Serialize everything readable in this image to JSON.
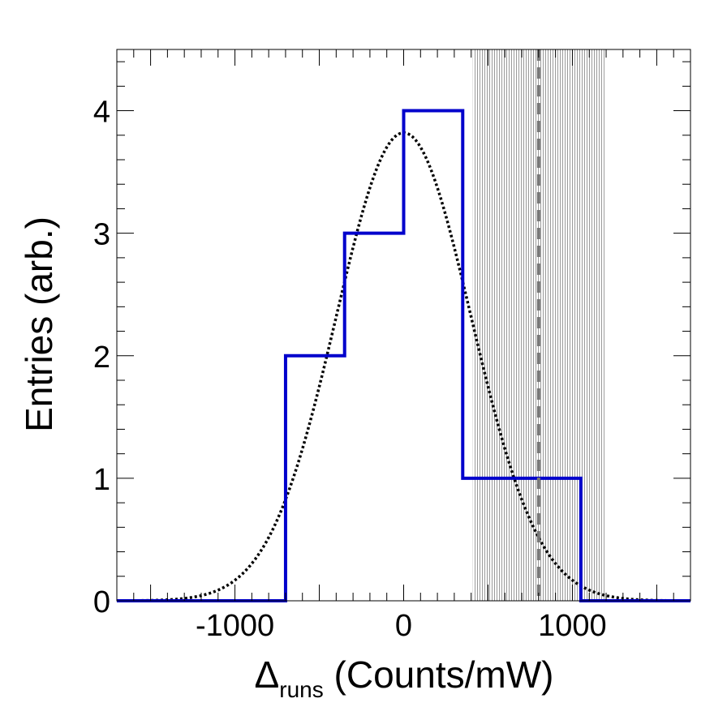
{
  "chart_data": {
    "type": "histogram",
    "xlabel": {
      "symbol": "Δ",
      "subscript": "runs",
      "rest": " (Counts/mW)"
    },
    "ylabel": "Entries (arb.)",
    "xlim": [
      -1700,
      1700
    ],
    "ylim": [
      0,
      4.5
    ],
    "x_ticks": [
      -1000,
      0,
      1000
    ],
    "y_ticks": [
      0,
      1,
      2,
      3,
      4
    ],
    "x_tick_labels": [
      "-1000",
      "0",
      "1000"
    ],
    "y_tick_labels": [
      "0",
      "1",
      "2",
      "3",
      "4"
    ],
    "histogram": {
      "color": "#0000cc",
      "bins": [
        {
          "x0": -700,
          "x1": -350,
          "value": 2
        },
        {
          "x0": -350,
          "x1": 0,
          "value": 3
        },
        {
          "x0": 0,
          "x1": 350,
          "value": 4
        },
        {
          "x0": 350,
          "x1": 1050,
          "value": 1
        }
      ]
    },
    "gaussian_fit": {
      "amplitude": 3.82,
      "mean": 0,
      "sigma": 400,
      "style": "dotted",
      "color": "#000000"
    },
    "reference_line": {
      "x": 800,
      "style": "dashed",
      "color": "#777777"
    },
    "shaded_band": {
      "x0": 410,
      "x1": 1190,
      "color": "#999999"
    },
    "grid": false,
    "legend": "none"
  }
}
